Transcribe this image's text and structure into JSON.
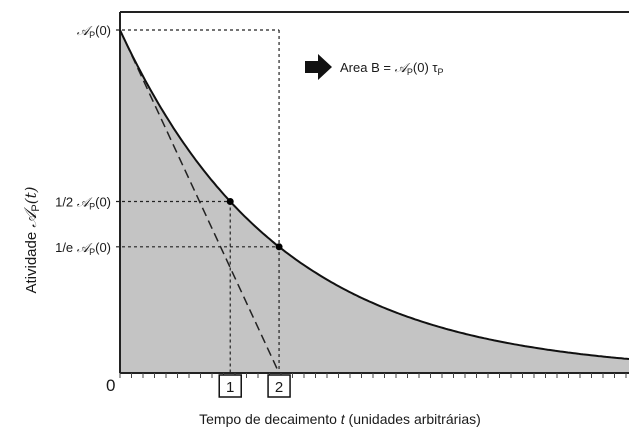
{
  "chart_data": {
    "type": "area",
    "curve": "exponential decay A_P(t) = A_P(0)·e^(−t/τ_P)",
    "y_label": {
      "prefix": "Atividade ",
      "symbol": "𝒜",
      "sub": "P",
      "arg": "(t)"
    },
    "x_label": {
      "prefix": "Tempo de decaimento ",
      "var": "t",
      "suffix": " (unidades arbitrárias)"
    },
    "origin_label": "0",
    "y_ticks": {
      "a0": {
        "prefix": "",
        "symbol": "𝒜",
        "sub": "P",
        "arg": "(0)",
        "value": 1.0
      },
      "half": {
        "prefix": "1/2 ",
        "symbol": "𝒜",
        "sub": "P",
        "arg": "(0)",
        "value": 0.5
      },
      "inv_e": {
        "prefix": "1/e ",
        "symbol": "𝒜",
        "sub": "P",
        "arg": "(0)",
        "value": 0.3679
      }
    },
    "area_label": {
      "prefix": "Area B = ",
      "symbol": "𝒜",
      "sub": "P",
      "arg": "(0) τ",
      "tail_sub": "P"
    },
    "markers": [
      {
        "label": "1",
        "t": 0.693,
        "meaning": "half-life"
      },
      {
        "label": "2",
        "t": 1.0,
        "meaning": "mean life τ_P"
      }
    ],
    "x_range": [
      0,
      3.2
    ],
    "y_range": [
      0,
      1.0
    ],
    "tangent_intercept_t": 1.0,
    "fill_color": "#c4c4c4",
    "line_color": "#111111"
  }
}
